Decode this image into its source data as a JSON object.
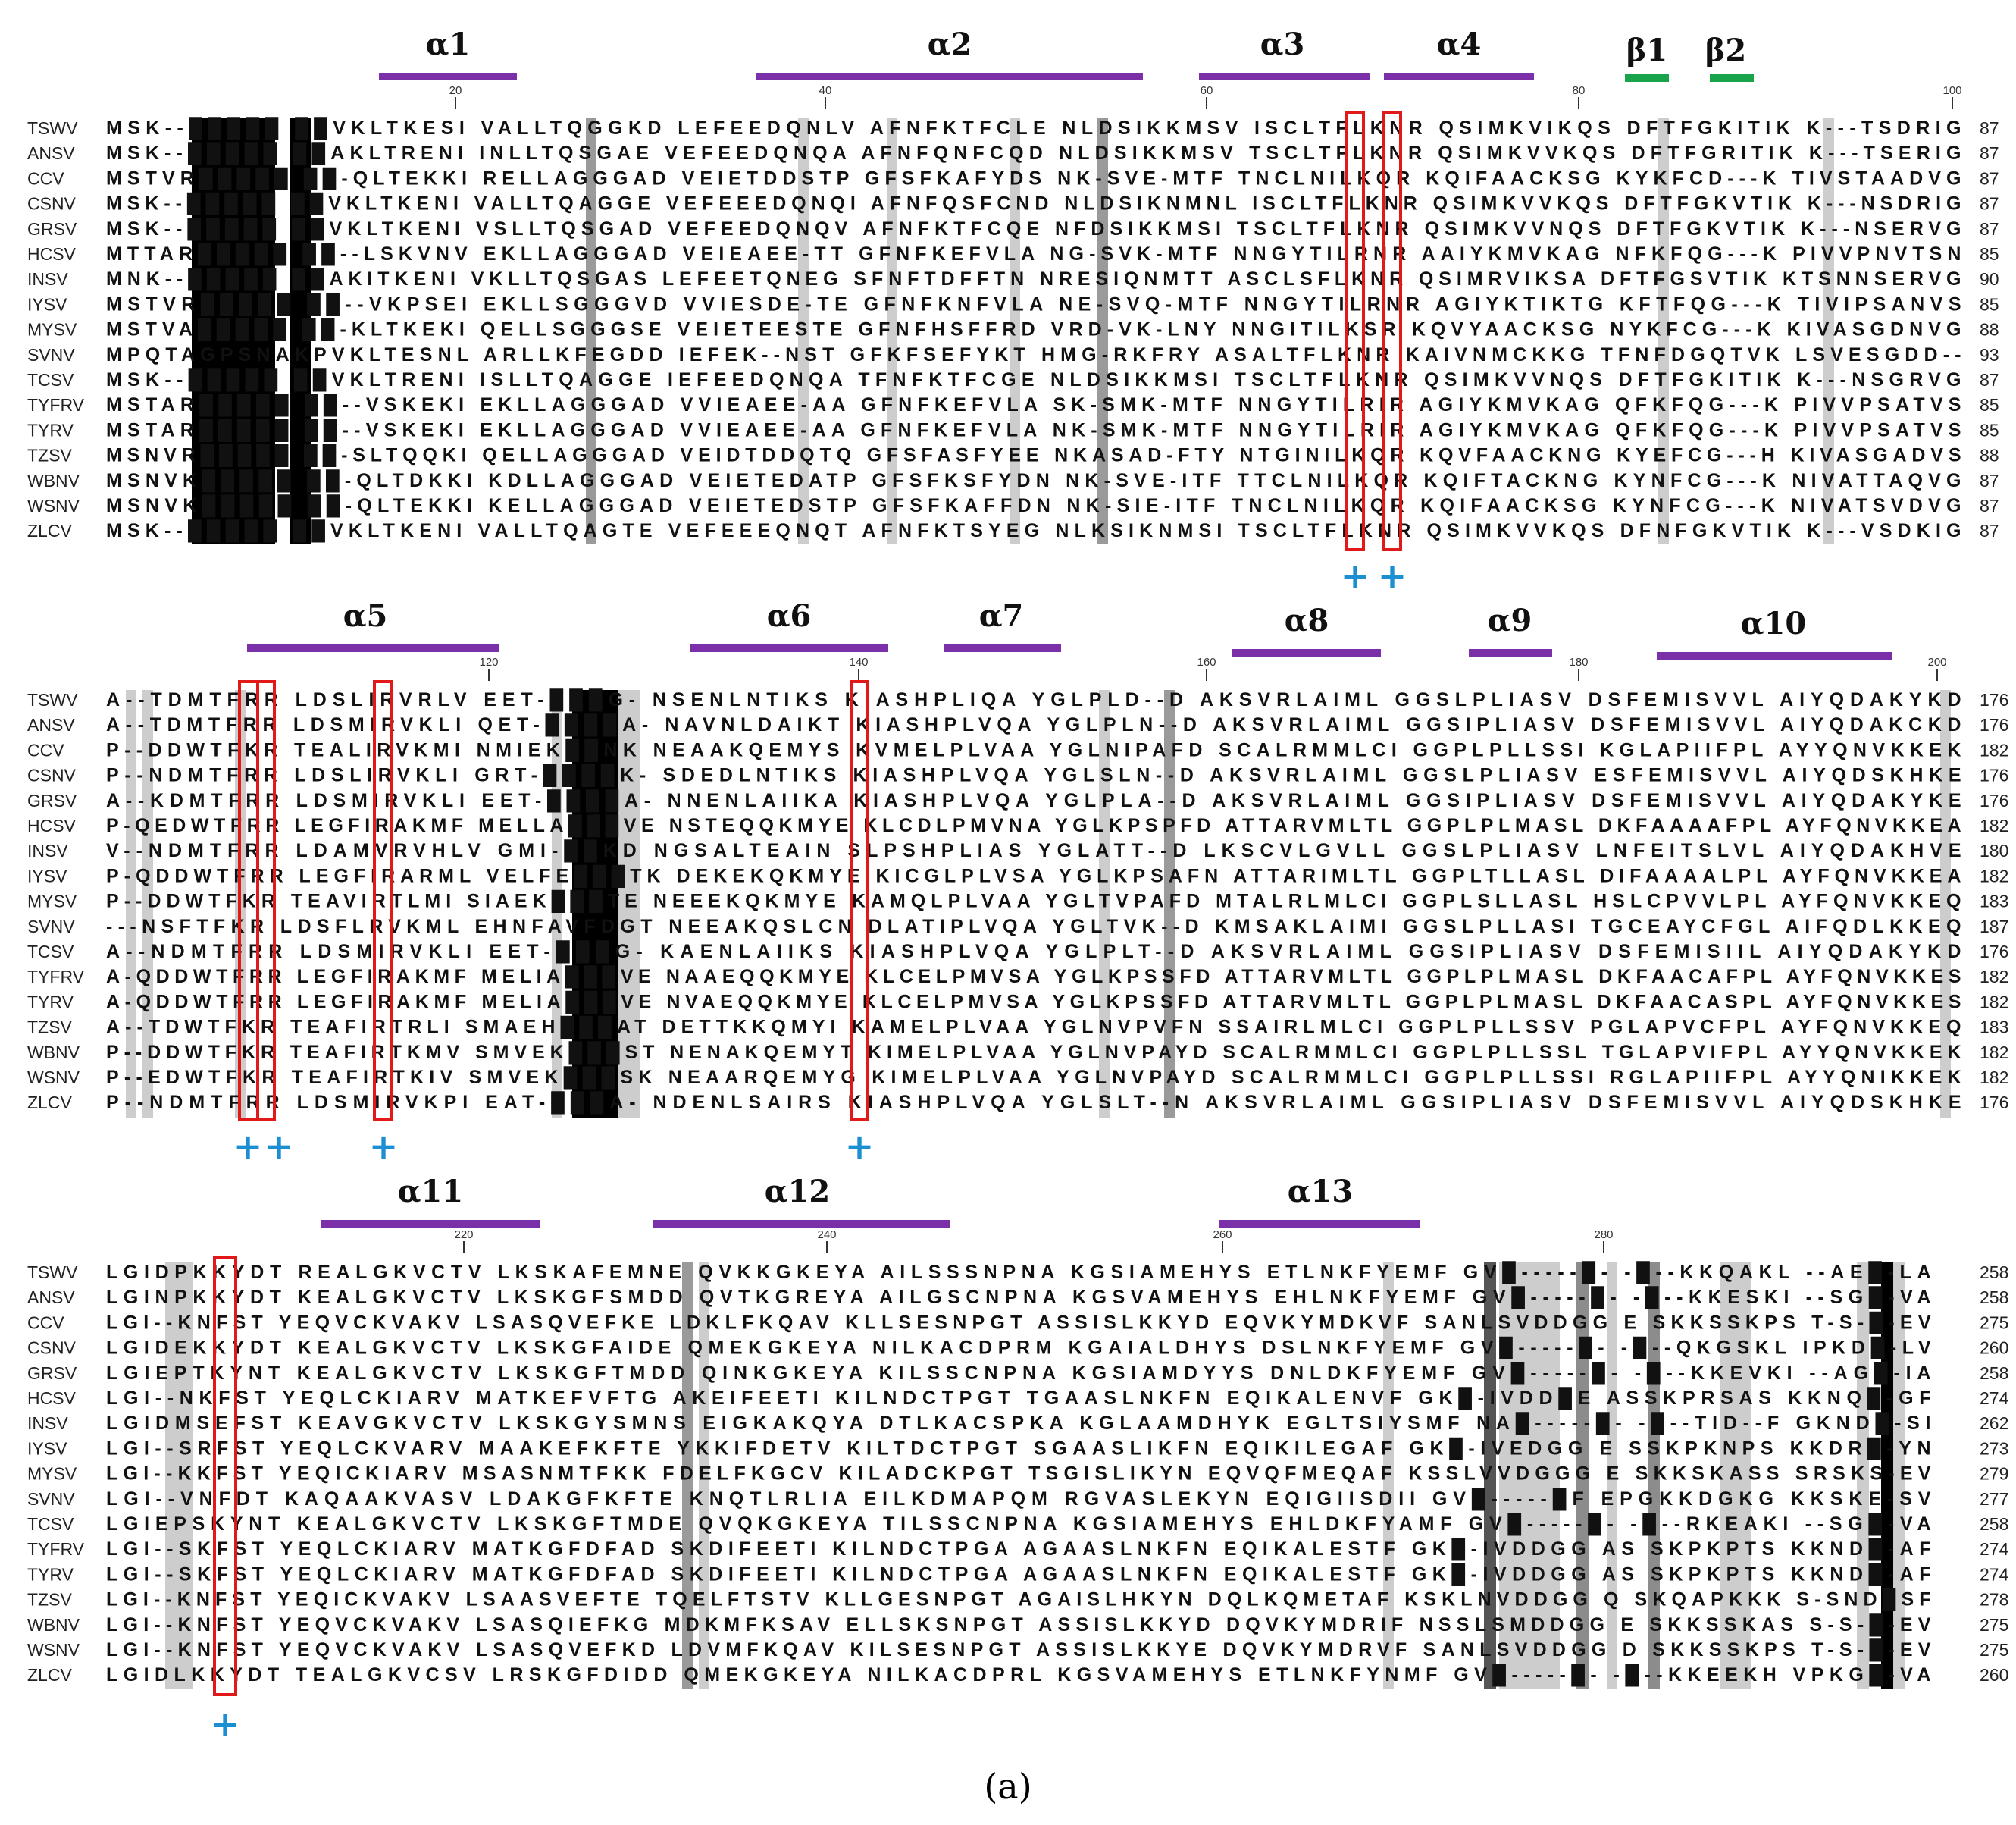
{
  "caption": "(a)",
  "colors": {
    "helix": "#7b2fa8",
    "strand": "#19a34a",
    "box": "#e11919",
    "plus": "#1c8fd3",
    "shade_black": "#000000",
    "shade_dark": "#8c8c8c",
    "shade_light": "#cdcdcd"
  },
  "species": [
    "TSWV",
    "ANSV",
    "CCV",
    "CSNV",
    "GRSV",
    "HCSV",
    "INSV",
    "IYSV",
    "MYSV",
    "SVNV",
    "TCSV",
    "TYFRV",
    "TYRV",
    "TZSV",
    "WBNV",
    "WSNV",
    "ZLCV"
  ],
  "blocks": [
    {
      "ticks": [
        "20",
        "40",
        "60",
        "80",
        "100"
      ],
      "elements": [
        {
          "label": "α1",
          "type": "helix"
        },
        {
          "label": "α2",
          "type": "helix"
        },
        {
          "label": "α3",
          "type": "helix"
        },
        {
          "label": "α4",
          "type": "helix"
        },
        {
          "label": "β1",
          "type": "strand"
        },
        {
          "label": "β2",
          "type": "strand"
        }
      ],
      "plus_marks": [
        "+",
        "+"
      ],
      "ends": [
        "87",
        "87",
        "87",
        "87",
        "87",
        "85",
        "90",
        "85",
        "88",
        "93",
        "87",
        "85",
        "85",
        "88",
        "87",
        "87",
        "87"
      ],
      "rows": [
        "MSK--█████ ██VKLTKESI VALLTQGGKD LEFEEDQNLV AFNFKTFCLE NLDSIKKMSV ISCLTFLKNR QSIMKVIKQS DFTFGKITIK K---TSDRIG",
        "MSK--█████ ██AKLTRENI INLLTQSGAE VEFEEDQNQA AFNFQNFCQD NLDSIKKMSV TSCLTFLKNR QSIMKVVKQS DFTFGRITIK K---TSERIG",
        "MSTVR█████ ██-QLTEKKI RELLAGGGAD VEIETDDSTP GFSFKAFYDS NK-SVE-MTF TNCLNILKQR KQIFAACKSG KYKFCD---K TIVSTAADVG",
        "MSK--█████ ██VKLTKENI VALLTQAGGE VEFEEEDQNQI AFNFQSFCND NLDSIKNMNL ISCLTFLKNR QSIMKVVKQS DFTFGKVTIK K---NSDRIG",
        "MSK--█████ ██VKLTKENI VSLLTQSGAD VEFEEDQNQV AFNFKTFCQE NFDSIKKMSI TSCLTFLKNR QSIMKVVNQS DFTFGKVTIK K---NSERVG",
        "MTTAR█████ ██--LSKVNV EKLLAGGGAD VEIEAEE-TT GFNFKEFVLA NG-SVK-MTF NNGYTILRNR AAIYKMVKAG NFKFQG---K PIVVPNVTSN",
        "MNK--█████ ██AKITKENI VKLLTQSGAS LEFEETQNEG SFNFTDFFTN NRESIQNMTT ASCLSFLKNR QSIMRVIKSA DFTFGSVTIK KTSNNSERVG",
        "MSTVR█████ ██--VKPSEI EKLLSGGGVD VVIESDE-TE GFNFKNFVLA NE-SVQ-MTF NNGYTILRNR AGIYKTIKTG KFTFQG---K TIVIPSANVS",
        "MSTVA█████ ██-KLTKEKI QELLSGGGSE VEIETEESTE GFNFHSFFRD VRD-VK-LNY NNGITILKSR KQVYAACKSG NYKFCG---K KIVASGDNVG",
        "MPQTAGPSNAKPVKLTESNL ARLLKFEGDD IEFEK--NST GFKFSEFYKT HMG-RKFRY ASALTFLKNR KAIVNMCKKG TFNFDGQTVK LSVESGDD--",
        "MSK--█████ ██VKLTRENI ISLLTQAGGE IEFEEDQNQA TFNFKTFCGE NLDSIKKMSI TSCLTFLKNR QSIMKVVNQS DFTFGKITIK K---NSGRVG",
        "MSTAR█████ ██--VSKEKI EKLLAGGGAD VVIEAEE-AA GFNFKEFVLA SK-SMK-MTF NNGYTILRIR AGIYKMVKAG QFKFQG---K PIVVPSATVS",
        "MSTAR█████ ██--VSKEKI EKLLAGGGAD VVIEAEE-AA GFNFKEFVLA NK-SMK-MTF NNGYTILRIR AGIYKMVKAG QFKFQG---K PIVVPSATVS",
        "MSNVR█████ ██-SLTQQKI QELLAGGGAD VEIDTDDQTQ GFSFASFYEE NKASAD-FTY NTGINILKQR KQVFAACKNG KYEFCG---H KIVASGADVS",
        "MSNVK█████ ██-QLTDKKI KDLLAGGGAD VEIETEDATP GFSFKSFYDN NK-SVE-ITF TTCLNILKQR KQIFTACKNG KYNFCG---K NIVATTAQVG",
        "MSNVK█████ ██-QLTEKKI KELLAGGGAD VEIETEDSTP GFSFKAFFDN NK-SIE-ITF TNCLNILKQR KQIFAACKSG KYNFCG---K NIVATSVDVG",
        "MSK--█████ ██VKLTKENI VALLTQAGTE VEFEEEQNQT AFNFKTSYEG NLKSIKNMSI TSCLTFLKNR QSIMKVVKQS DFNFGKVTIK K---VSDKIG"
      ]
    },
    {
      "ticks": [
        "120",
        "140",
        "160",
        "180",
        "200"
      ],
      "elements": [
        {
          "label": "α5",
          "type": "helix"
        },
        {
          "label": "α6",
          "type": "helix"
        },
        {
          "label": "α7",
          "type": "helix"
        },
        {
          "label": "α8",
          "type": "helix"
        },
        {
          "label": "α9",
          "type": "helix"
        },
        {
          "label": "α10",
          "type": "helix"
        }
      ],
      "plus_marks": [
        "+",
        "+",
        "+",
        "+"
      ],
      "ends": [
        "176",
        "176",
        "182",
        "176",
        "176",
        "182",
        "180",
        "182",
        "183",
        "187",
        "176",
        "182",
        "182",
        "183",
        "182",
        "182",
        "176"
      ],
      "rows": [
        "A--TDMTFRR LDSLIRVRLV EET-███G- NSENLNTIKS KIASHPLIQA YGLPLD--D AKSVRLAIML GGSLPLIASV DSFEMISVVL AIYQDAKYKD",
        "A--TDMTFRR LDSMIRVKLI QET-████A- NAVNLDAIKT KIASHPLVQA YGLPLN--D AKSVRLAIML GGSIPLIASV DSFEMISVVL AIYQDAKCKD",
        "P--DDWTFKR TEALIRVKMI NMIEK██NK NEAAKQEMYS KVMELPLVAA YGLNIPAFD SCALRMMLCI GGPLPLLSSI KGLAPIIFPL AYYQNVKKEK",
        "P--NDMTFRR LDSLIRVKLI GRT-████K- SDEDLNTIKS KIASHPLVQA YGLSLN--D AKSVRLAIML GGSLPLIASV ESFEMISVVL AIYQDSKHKE",
        "A--KDMTFRR LDSMIRVKLI EET-████A- NNENLAIIKA KIASHPLVQA YGLPLA--D AKSVRLAIML GGSIPLIASV DSFEMISVVL AIYQDAKYKE",
        "P-QEDWTFRR LEGFIRAKMF MELLA███VE NSTEQQKMYE KLCDLPMVNA YGLKPSPFD ATTARVMLTL GGPLPLMASL DKFAAAAFPL AYFQNVKKEA",
        "V--NDMTFRR LDAMVRVHLV GMI-██KD NGSALTEAIN SLPSHPLIAS YGLATT--D LKSCVLGVLL GGSLPLIASV LNFEITSLVL AIYQDAKHVE",
        "P-QDDWTFRR LEGFIRARML VELFE███TK DEKEKQKMYE KICGLPLVSA YGLKPSAFN ATTARIMLTL GGPLTLLASL DIFAAAALPL AYFQNVKKEA",
        "P--DDWTFKR TEAVIRTLMI SIAEK███TE NEEEKQKMYE KAMQLPLVAA YGLTVPAFD MTALRLMLCI GGPLSLLASL HSLCPVVLPL AYFQNVKKEQ",
        "---NSFTFKR LDSFLRVKML EHNFAVFDGT NEEAKQSLCN DLATIPLVQA YGLTVK--D KMSAKLAIMI GGSLPLLASI TGCEAYCFGL AIFQDLKKEQ",
        "A--NDMTFRR LDSMIRVKLI EET-███G- KAENLAIIKS KIASHPLVQA YGLPLT--D AKSVRLAIML GGSIPLIASV DSFEMISIIL AIYQDAKYKD",
        "A-QDDWTFRR LEGFIRAKMF MELIA███VE NAAEQQKMYE KLCELPMVSA YGLKPSSFD ATTARVMLTL GGPLPLMASL DKFAACAFPL AYFQNVKKES",
        "A-QDDWTFRR LEGFIRAKMF MELIA███VE NVAEQQKMYE KLCELPMVSA YGLKPSSFD ATTARVMLTL GGPLPLMASL DKFAACASPL AYFQNVKKES",
        "A--TDWTFKR TEAFIRTRLI SMAEH███AT DETTKKQMYI KAMELPLVAA YGLNVPVFN SSAIRLMLCI GGPLPLLSSV PGLAPVCFPL AYFQNVKKEQ",
        "P--DDWTFKR TEAFIRTKMV SMVEK███ST NENAKQEMYT KIMELPLVAA YGLNVPAYD SCALRMMLCI GGPLPLLSSL TGLAPVIFPL AYYQNVKKEK",
        "P--EDWTFKR TEAFIRTKIV SMVEK███SK NEAARQEMYG KIMELPLVAA YGLNVPAYD SCALRMMLCI GGPLPLLSSI RGLAPIIFPL AYYQNIKKEK",
        "P--NDMTFRR LDSMIRVKPI EAT-███A- NDENLSAIRS KIASHPLVQA YGLSLT--N AKSVRLAIML GGSIPLIASV DSFEMISVVL AIYQDSKHKE"
      ]
    },
    {
      "ticks": [
        "220",
        "240",
        "260",
        "280"
      ],
      "elements": [
        {
          "label": "α11",
          "type": "helix"
        },
        {
          "label": "α12",
          "type": "helix"
        },
        {
          "label": "α13",
          "type": "helix"
        }
      ],
      "plus_marks": [
        "+"
      ],
      "ends": [
        "258",
        "258",
        "275",
        "260",
        "258",
        "274",
        "262",
        "273",
        "279",
        "277",
        "258",
        "274",
        "274",
        "278",
        "275",
        "275",
        "260"
      ],
      "rows": [
        "LGIDPKKYDT REALGKVCTV LKSKAFEMNE QVKKGKEYA AILSSSNPNA KGSIAMEHYS ETLNKFYEMF GV█-----█- -█--KKQAKL --AE█-LA",
        "LGINPKKYDT KEALGKVCTV LKSKGFSMDD QVTKGREYA AILGSCNPNA KGSVAMEHYS EHLNKFYEMF GV█-----█- -█--KKESKI --SG█-VA",
        "LGI--KNFST YEQVCKVAKV LSASQVEFKE LDKLFKQAV KLLSESNPGT ASSISLKKYD EQVKYMDKVF SANLSVDDGG E SKKSSKPS T-S-█-EV",
        "LGIDEKKYDT KEALGKVCTV LKSKGFAIDE QMEKGKEYA NILKACDPRM KGAIALDHYS DSLNKFYEMF GV█-----█- -█--QKGSKL IPKD█-LV",
        "LGIEPTKYNT KEALGKVCTV LKSKGFTMDD QINKGKEYA KILSSCNPNA KGSIAMDYYS DNLDKFYEMF GV█-----█- -█--KKEVKI --AG█-IA",
        "LGI--NKFST YEQLCKIARV MATKEFVFTG AKEIFEETI KILNDCTPGT TGAASLNKFN EQIKALENVF GK█-IVDD█E ASSKPRSAS KKNQ█-GF",
        "LGIDMSEFST KEAVGKVCTV LKSKGYSMNS EIGKAKQYA DTLKACSPKA KGLAAMDHYK EGLTSIYSMF NA█-----█- -█--TID--F GKND█-SI",
        "LGI--SRFST YEQLCKVARV MAAKEFKFTE YKKIFDETV KILTDCTPGT SGAASLIKFN EQIKILEGAF GK█-IVEDGG E SSKPKNPS KKDR█-YN",
        "LGI--KKFST YEQICKIARV MSASNMTFKK FDELFKGCV KILADCKPGT TSGISLIKYN EQVQFMEQAF KSSLVVDGGG E SKKSKASS SRSKS-EV",
        "LGI--VNFDT KAQAAKVASV LDAKGFKFTE KNQTLRLIA EILKDMAPQM RGVASLEKYN EQIGIISDII GV█-----█F EPGKKDGKG KKSKE-SV",
        "LGIEPSKYNT KEALGKVCTV LKSKGFTMDE QVQKGKEYA TILSSCNPNA KGSIAMEHYS EHLDKFYAMF GV█-----█- -█--RKEAKI --SG█-VA",
        "LGI--SKFST YEQLCKIARV MATKGFDFAD SKDIFEETI KILNDCTPGA AGAASLNKFN EQIKALESTF GK█-IVDDGG AS SKPKPTS KKND█-AF",
        "LGI--SKFST YEQLCKIARV MATKGFDFAD SKDIFEETI KILNDCTPGA AGAASLNKFN EQIKALESTF GK█-IVDDGG AS SKPKPTS KKND█-AF",
        "LGI--KNFST YEQICKVAKV LSAASVEFTE TQELFTSTV KLLGESNPGT AGAISLHKYN DQLKQMETAF KSKLNVDDGG Q SKQAPKKK S-SND█SF",
        "LGI--KNFST YEQVCKVAKV LSASQIEFKG MDKMFKSAV ELLSKSNPGT ASSISLKKYD DQVKYMDRIF NSSLSMDDGG E SKKSSKAS S-S-█-EV",
        "LGI--KNFST YEQVCKVAKV LSASQVEFKD LDVMFKQAV KILSESNPGT ASSISLKKYE DQVKYMDRVF SANLSVDDGG D SKKSSKPS T-S-█-EV",
        "LGIDLKKYDT TEALGKVCSV LRSKGFDIDD QMEKGKEYA NILKACDPRL KGSVAMEHYS ETLNKFYNMF GV█-----█- -█--KKEEKH VPKG█-VA"
      ]
    }
  ]
}
